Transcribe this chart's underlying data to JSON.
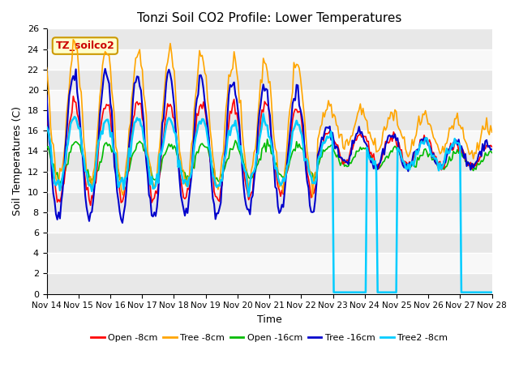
{
  "title": "Tonzi Soil CO2 Profile: Lower Temperatures",
  "xlabel": "Time",
  "ylabel": "Soil Temperatures (C)",
  "ylim": [
    0,
    26
  ],
  "yticks": [
    0,
    2,
    4,
    6,
    8,
    10,
    12,
    14,
    16,
    18,
    20,
    22,
    24,
    26
  ],
  "xtick_labels": [
    "Nov 14",
    "Nov 15",
    "Nov 16",
    "Nov 17",
    "Nov 18",
    "Nov 19",
    "Nov 20",
    "Nov 21",
    "Nov 22",
    "Nov 23",
    "Nov 24",
    "Nov 25",
    "Nov 26",
    "Nov 27",
    "Nov 28"
  ],
  "legend_labels": [
    "Open -8cm",
    "Tree -8cm",
    "Open -16cm",
    "Tree -16cm",
    "Tree2 -8cm"
  ],
  "legend_colors": [
    "#ff0000",
    "#ffa500",
    "#00bb00",
    "#0000cc",
    "#00ccff"
  ],
  "plot_bg_color": "#f0f0f0",
  "band_color_light": "#e8e8e8",
  "band_color_white": "#f8f8f8",
  "annotation_text": "TZ_soilco2",
  "annotation_color": "#cc0000",
  "annotation_bg": "#ffffcc",
  "annotation_border": "#cc9900",
  "seed": 42
}
